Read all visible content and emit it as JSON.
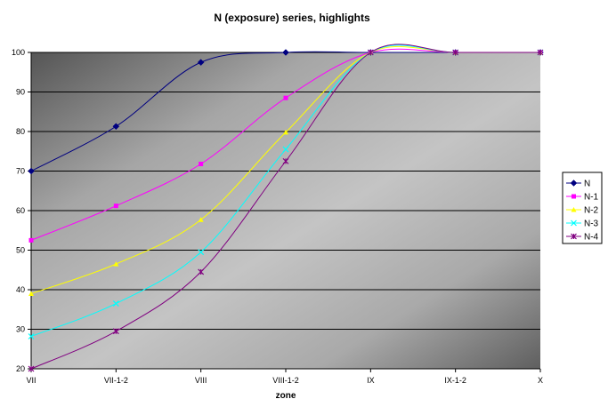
{
  "chart_data": {
    "type": "line",
    "title": "N (exposure) series, highlights",
    "xlabel": "zone",
    "ylabel": "",
    "categories": [
      "VII",
      "VII-1-2",
      "VIII",
      "VIII-1-2",
      "IX",
      "IX-1-2",
      "X"
    ],
    "ylim": [
      20,
      100
    ],
    "yticks": [
      20,
      30,
      40,
      50,
      60,
      70,
      80,
      90,
      100
    ],
    "grid": "horizontal",
    "legend_position": "right",
    "series": [
      {
        "name": "N",
        "color": "#000080",
        "marker": "diamond",
        "values": [
          70,
          81.3,
          97.5,
          100,
          100,
          100,
          100
        ]
      },
      {
        "name": "N-1",
        "color": "#FF00FF",
        "marker": "square",
        "values": [
          52.5,
          61.2,
          71.8,
          88.5,
          100,
          100,
          100
        ]
      },
      {
        "name": "N-2",
        "color": "#FFFF00",
        "marker": "triangle",
        "values": [
          39,
          46.5,
          57.7,
          79.8,
          100,
          100,
          100
        ]
      },
      {
        "name": "N-3",
        "color": "#00FFFF",
        "marker": "x",
        "values": [
          28.2,
          36.5,
          49.5,
          75.5,
          100,
          100,
          100
        ]
      },
      {
        "name": "N-4",
        "color": "#800080",
        "marker": "star",
        "values": [
          20,
          29.5,
          44.5,
          72.5,
          100,
          100,
          100
        ]
      }
    ]
  }
}
